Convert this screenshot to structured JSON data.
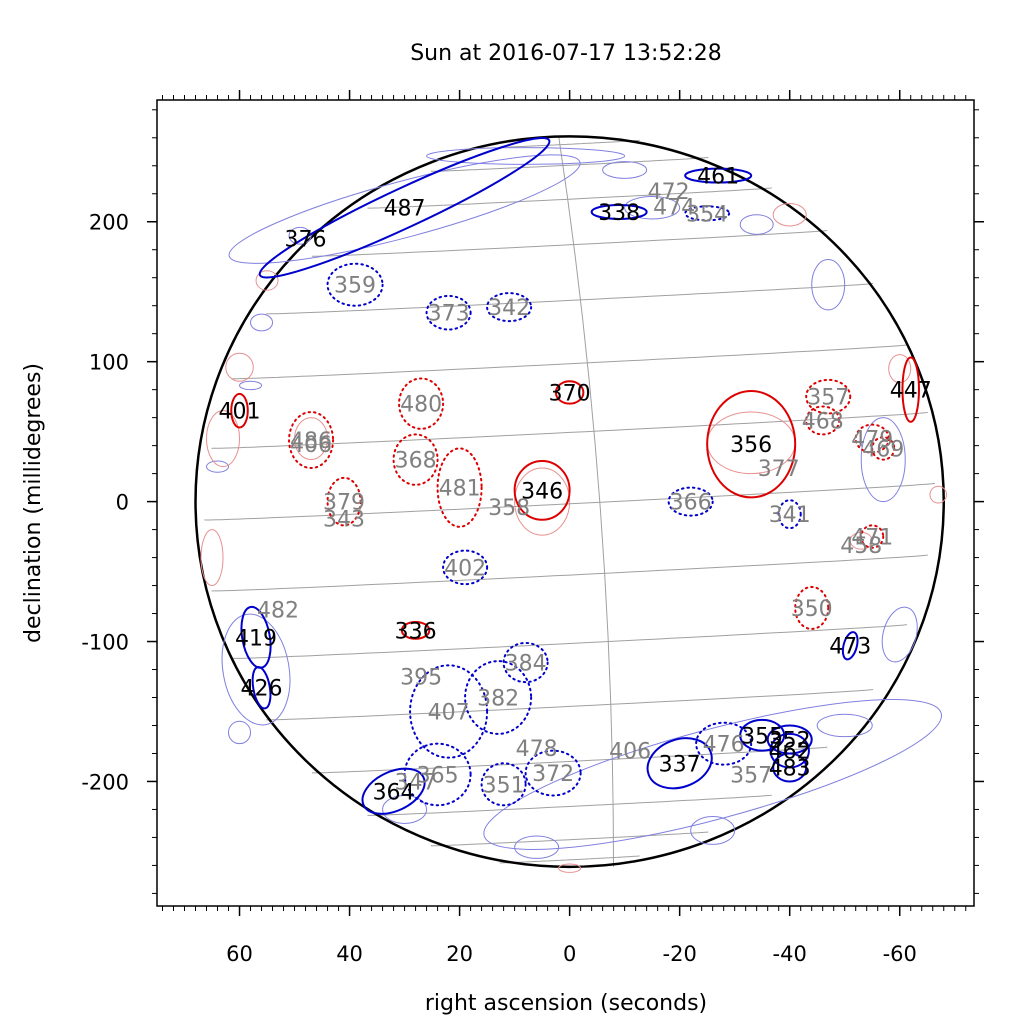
{
  "chart_data": {
    "type": "scatter",
    "title": "Sun at 2016-07-17 13:52:28",
    "xlabel": "right ascension (seconds)",
    "ylabel": "declination (millidegrees)",
    "xlim": [
      75,
      -73.5
    ],
    "ylim": [
      -289,
      287
    ],
    "x_ticks": [
      60,
      40,
      20,
      0,
      -20,
      -40,
      -60
    ],
    "x_tick_labels": [
      "60",
      "40",
      "20",
      "0",
      "-20",
      "-40",
      "-60"
    ],
    "y_ticks": [
      200,
      100,
      0,
      -100,
      -200
    ],
    "y_tick_labels": [
      "200",
      "100",
      "0",
      "-100",
      "-200"
    ],
    "x_minor_step": 2,
    "y_minor_step": 20,
    "sun": {
      "center_ra": 0,
      "center_dec": 0,
      "radius_ra": 68,
      "radius_dec": 261
    },
    "grid": {
      "latitude_lines": 15,
      "central_meridian": true
    },
    "colors": {
      "blue": "#0000cc",
      "red": "#dd0000",
      "faint_blue": "#8080e0",
      "faint_red": "#e89090",
      "label_gray": "#808080",
      "grid": "#a0a0a0"
    },
    "regions": [
      {
        "label": "487",
        "ra": 30,
        "dec": 210,
        "rx": 29,
        "ry": 14,
        "rot": -25,
        "color": "blue",
        "style": "solid",
        "label_tone": "black"
      },
      {
        "label": "376",
        "ra": 48,
        "dec": 188,
        "rx": 0,
        "ry": 0,
        "rot": 0,
        "color": "blue",
        "style": "solid",
        "label_tone": "black"
      },
      {
        "label": "461",
        "ra": -27,
        "dec": 233,
        "rx": 6,
        "ry": 5,
        "rot": 0,
        "color": "blue",
        "style": "solid",
        "label_tone": "black"
      },
      {
        "label": "472",
        "ra": -18,
        "dec": 222,
        "rx": 0,
        "ry": 0,
        "rot": 0,
        "color": "blue",
        "style": "dotted",
        "label_tone": "gray"
      },
      {
        "label": "474",
        "ra": -19,
        "dec": 211,
        "rx": 0,
        "ry": 0,
        "rot": 0,
        "color": "blue",
        "style": "dotted",
        "label_tone": "gray"
      },
      {
        "label": "338",
        "ra": -9,
        "dec": 207,
        "rx": 5,
        "ry": 5,
        "rot": 0,
        "color": "blue",
        "style": "solid",
        "label_tone": "black"
      },
      {
        "label": "354",
        "ra": -25,
        "dec": 206,
        "rx": 4,
        "ry": 5,
        "rot": 0,
        "color": "blue",
        "style": "dotted",
        "label_tone": "gray"
      },
      {
        "label": "359",
        "ra": 39,
        "dec": 155,
        "rx": 5,
        "ry": 15,
        "rot": 0,
        "color": "blue",
        "style": "dotted",
        "label_tone": "gray"
      },
      {
        "label": "373",
        "ra": 22,
        "dec": 135,
        "rx": 4,
        "ry": 12,
        "rot": 0,
        "color": "blue",
        "style": "dotted",
        "label_tone": "gray"
      },
      {
        "label": "342",
        "ra": 11,
        "dec": 139,
        "rx": 4,
        "ry": 10,
        "rot": 0,
        "color": "blue",
        "style": "dotted",
        "label_tone": "gray"
      },
      {
        "label": "370",
        "ra": 0,
        "dec": 78,
        "rx": 2.5,
        "ry": 8,
        "rot": 0,
        "color": "red",
        "style": "solid",
        "label_tone": "black"
      },
      {
        "label": "447",
        "ra": -62,
        "dec": 80,
        "rx": 1.5,
        "ry": 23,
        "rot": 0,
        "color": "red",
        "style": "solid",
        "label_tone": "black"
      },
      {
        "label": "401",
        "ra": 60,
        "dec": 65,
        "rx": 1.5,
        "ry": 12,
        "rot": 0,
        "color": "red",
        "style": "solid",
        "label_tone": "black"
      },
      {
        "label": "480",
        "ra": 27,
        "dec": 70,
        "rx": 4,
        "ry": 18,
        "rot": 0,
        "color": "red",
        "style": "dotted",
        "label_tone": "gray"
      },
      {
        "label": "357",
        "ra": -47,
        "dec": 75,
        "rx": 4,
        "ry": 12,
        "rot": 0,
        "color": "red",
        "style": "dotted",
        "label_tone": "gray"
      },
      {
        "label": "468",
        "ra": -46,
        "dec": 58,
        "rx": 3,
        "ry": 10,
        "rot": 0,
        "color": "red",
        "style": "dotted",
        "label_tone": "gray"
      },
      {
        "label": "356",
        "ra": -33,
        "dec": 41,
        "rx": 8,
        "ry": 38,
        "rot": 0,
        "color": "red",
        "style": "solid",
        "label_tone": "black"
      },
      {
        "label": "479",
        "ra": -55,
        "dec": 45,
        "rx": 3,
        "ry": 10,
        "rot": 0,
        "color": "red",
        "style": "dotted",
        "label_tone": "gray"
      },
      {
        "label": "469",
        "ra": -57,
        "dec": 38,
        "rx": 2,
        "ry": 8,
        "rot": 0,
        "color": "red",
        "style": "dotted",
        "label_tone": "gray"
      },
      {
        "label": "377",
        "ra": -38,
        "dec": 24,
        "rx": 0,
        "ry": 0,
        "rot": 0,
        "color": "red",
        "style": "solid",
        "label_tone": "gray"
      },
      {
        "label": "486",
        "ra": 47,
        "dec": 44,
        "rx": 4,
        "ry": 20,
        "rot": 0,
        "color": "red",
        "style": "dotted",
        "label_tone": "gray"
      },
      {
        "label": "406",
        "ra": 47,
        "dec": 41,
        "rx": 0,
        "ry": 0,
        "rot": 0,
        "color": "red",
        "style": "dotted",
        "label_tone": "gray"
      },
      {
        "label": "368",
        "ra": 28,
        "dec": 30,
        "rx": 4,
        "ry": 18,
        "rot": 0,
        "color": "red",
        "style": "dotted",
        "label_tone": "gray"
      },
      {
        "label": "481",
        "ra": 20,
        "dec": 10,
        "rx": 4,
        "ry": 28,
        "rot": 0,
        "color": "red",
        "style": "dotted",
        "label_tone": "gray"
      },
      {
        "label": "346",
        "ra": 5,
        "dec": 8,
        "rx": 5,
        "ry": 21,
        "rot": 0,
        "color": "red",
        "style": "solid",
        "label_tone": "black"
      },
      {
        "label": "358",
        "ra": 11,
        "dec": -4,
        "rx": 0,
        "ry": 0,
        "rot": 0,
        "color": "red",
        "style": "solid",
        "label_tone": "gray"
      },
      {
        "label": "379",
        "ra": 41,
        "dec": 0,
        "rx": 3,
        "ry": 17,
        "rot": 0,
        "color": "red",
        "style": "dotted",
        "label_tone": "gray"
      },
      {
        "label": "343",
        "ra": 41,
        "dec": -12,
        "rx": 0,
        "ry": 0,
        "rot": 0,
        "color": "red",
        "style": "dotted",
        "label_tone": "gray"
      },
      {
        "label": "366",
        "ra": -22,
        "dec": 0,
        "rx": 4,
        "ry": 10,
        "rot": 0,
        "color": "blue",
        "style": "dotted",
        "label_tone": "gray"
      },
      {
        "label": "341",
        "ra": -40,
        "dec": -9,
        "rx": 2,
        "ry": 10,
        "rot": 0,
        "color": "blue",
        "style": "dotted",
        "label_tone": "gray"
      },
      {
        "label": "471",
        "ra": -55,
        "dec": -25,
        "rx": 2,
        "ry": 8,
        "rot": 0,
        "color": "red",
        "style": "dotted",
        "label_tone": "gray"
      },
      {
        "label": "458",
        "ra": -53,
        "dec": -31,
        "rx": 0,
        "ry": 0,
        "rot": 0,
        "color": "red",
        "style": "dotted",
        "label_tone": "gray"
      },
      {
        "label": "402",
        "ra": 19,
        "dec": -47,
        "rx": 4,
        "ry": 12,
        "rot": 0,
        "color": "blue",
        "style": "dotted",
        "label_tone": "gray"
      },
      {
        "label": "482",
        "ra": 53,
        "dec": -77,
        "rx": 0,
        "ry": 0,
        "rot": 0,
        "color": "red",
        "style": "dotted",
        "label_tone": "gray"
      },
      {
        "label": "350",
        "ra": -44,
        "dec": -76,
        "rx": 3,
        "ry": 15,
        "rot": 0,
        "color": "red",
        "style": "dotted",
        "label_tone": "gray"
      },
      {
        "label": "419",
        "ra": 57,
        "dec": -97,
        "rx": 2.5,
        "ry": 22,
        "rot": -10,
        "color": "blue",
        "style": "solid",
        "label_tone": "black"
      },
      {
        "label": "336",
        "ra": 28,
        "dec": -92,
        "rx": 2.5,
        "ry": 6,
        "rot": 0,
        "color": "red",
        "style": "solid",
        "label_tone": "black"
      },
      {
        "label": "473",
        "ra": -51,
        "dec": -103,
        "rx": 1.2,
        "ry": 10,
        "rot": 15,
        "color": "blue",
        "style": "solid",
        "label_tone": "black"
      },
      {
        "label": "384",
        "ra": 8,
        "dec": -115,
        "rx": 4,
        "ry": 14,
        "rot": 0,
        "color": "blue",
        "style": "dotted",
        "label_tone": "gray"
      },
      {
        "label": "395",
        "ra": 27,
        "dec": -125,
        "rx": 0,
        "ry": 0,
        "rot": 0,
        "color": "red",
        "style": "dotted",
        "label_tone": "gray"
      },
      {
        "label": "426",
        "ra": 56,
        "dec": -133,
        "rx": 1.5,
        "ry": 15,
        "rot": -10,
        "color": "blue",
        "style": "solid",
        "label_tone": "black"
      },
      {
        "label": "382",
        "ra": 13,
        "dec": -140,
        "rx": 6,
        "ry": 26,
        "rot": 0,
        "color": "blue",
        "style": "dotted",
        "label_tone": "gray"
      },
      {
        "label": "407",
        "ra": 22,
        "dec": -150,
        "rx": 7,
        "ry": 33,
        "rot": 0,
        "color": "blue",
        "style": "dotted",
        "label_tone": "gray"
      },
      {
        "label": "355",
        "ra": -35,
        "dec": -167,
        "rx": 4,
        "ry": 11,
        "rot": 0,
        "color": "blue",
        "style": "solid",
        "label_tone": "black"
      },
      {
        "label": "352",
        "ra": -40,
        "dec": -170,
        "rx": 4,
        "ry": 10,
        "rot": 0,
        "color": "blue",
        "style": "solid",
        "label_tone": "black"
      },
      {
        "label": "476",
        "ra": -28,
        "dec": -173,
        "rx": 5,
        "ry": 15,
        "rot": 0,
        "color": "blue",
        "style": "dotted",
        "label_tone": "gray"
      },
      {
        "label": "478",
        "ra": 6,
        "dec": -176,
        "rx": 0,
        "ry": 0,
        "rot": 0,
        "color": "blue",
        "style": "dotted",
        "label_tone": "gray"
      },
      {
        "label": "406",
        "ra": -11,
        "dec": -178,
        "rx": 0,
        "ry": 0,
        "rot": 0,
        "color": "blue",
        "style": "solid",
        "label_tone": "gray"
      },
      {
        "label": "462",
        "ra": -40,
        "dec": -178,
        "rx": 3.5,
        "ry": 12,
        "rot": 0,
        "color": "blue",
        "style": "solid",
        "label_tone": "black"
      },
      {
        "label": "337",
        "ra": -20,
        "dec": -187,
        "rx": 6,
        "ry": 17,
        "rot": -20,
        "color": "blue",
        "style": "solid",
        "label_tone": "black"
      },
      {
        "label": "483",
        "ra": -40,
        "dec": -190,
        "rx": 3,
        "ry": 10,
        "rot": 0,
        "color": "blue",
        "style": "solid",
        "label_tone": "black"
      },
      {
        "label": "372",
        "ra": 3,
        "dec": -194,
        "rx": 5,
        "ry": 16,
        "rot": 0,
        "color": "blue",
        "style": "dotted",
        "label_tone": "gray"
      },
      {
        "label": "357",
        "ra": -33,
        "dec": -195,
        "rx": 0,
        "ry": 0,
        "rot": 0,
        "color": "blue",
        "style": "dotted",
        "label_tone": "gray"
      },
      {
        "label": "365",
        "ra": 24,
        "dec": -195,
        "rx": 6,
        "ry": 22,
        "rot": 0,
        "color": "blue",
        "style": "dotted",
        "label_tone": "gray"
      },
      {
        "label": "347",
        "ra": 28,
        "dec": -200,
        "rx": 0,
        "ry": 0,
        "rot": 0,
        "color": "blue",
        "style": "dotted",
        "label_tone": "gray"
      },
      {
        "label": "351",
        "ra": 12,
        "dec": -202,
        "rx": 4,
        "ry": 15,
        "rot": 0,
        "color": "blue",
        "style": "dotted",
        "label_tone": "gray"
      },
      {
        "label": "364",
        "ra": 32,
        "dec": -207,
        "rx": 6,
        "ry": 14,
        "rot": -25,
        "color": "blue",
        "style": "solid",
        "label_tone": "black"
      }
    ],
    "faint_regions": [
      {
        "ra": -26,
        "dec": -195,
        "rx": 43,
        "ry": 32,
        "rot": -15,
        "color": "faint_blue"
      },
      {
        "ra": 30,
        "dec": 209,
        "rx": 33,
        "ry": 20,
        "rot": -15,
        "color": "faint_blue"
      },
      {
        "ra": 8,
        "dec": 247,
        "rx": 18,
        "ry": 6,
        "rot": 0,
        "color": "faint_blue"
      },
      {
        "ra": -10,
        "dec": 237,
        "rx": 4,
        "ry": 6,
        "rot": 0,
        "color": "faint_blue"
      },
      {
        "ra": -34,
        "dec": 198,
        "rx": 3,
        "ry": 7,
        "rot": 0,
        "color": "faint_blue"
      },
      {
        "ra": -47,
        "dec": 155,
        "rx": 3,
        "ry": 18,
        "rot": 0,
        "color": "faint_blue"
      },
      {
        "ra": -57,
        "dec": 30,
        "rx": 4,
        "ry": 30,
        "rot": 0,
        "color": "faint_blue"
      },
      {
        "ra": -60,
        "dec": -95,
        "rx": 3,
        "ry": 20,
        "rot": 15,
        "color": "faint_blue"
      },
      {
        "ra": -50,
        "dec": -160,
        "rx": 5,
        "ry": 8,
        "rot": 0,
        "color": "faint_blue"
      },
      {
        "ra": -26,
        "dec": -235,
        "rx": 4,
        "ry": 10,
        "rot": 0,
        "color": "faint_blue"
      },
      {
        "ra": 6,
        "dec": -247,
        "rx": 4,
        "ry": 8,
        "rot": 0,
        "color": "faint_blue"
      },
      {
        "ra": 57,
        "dec": -120,
        "rx": 6,
        "ry": 40,
        "rot": -10,
        "color": "faint_blue"
      },
      {
        "ra": 60,
        "dec": -165,
        "rx": 2,
        "ry": 8,
        "rot": 0,
        "color": "faint_blue"
      },
      {
        "ra": 30,
        "dec": -220,
        "rx": 4,
        "ry": 10,
        "rot": 0,
        "color": "faint_blue"
      },
      {
        "ra": 56,
        "dec": 128,
        "rx": 2,
        "ry": 6,
        "rot": 0,
        "color": "faint_blue"
      },
      {
        "ra": 58,
        "dec": 83,
        "rx": 2,
        "ry": 3,
        "rot": 0,
        "color": "faint_blue"
      },
      {
        "ra": 64,
        "dec": 25,
        "rx": 2,
        "ry": 4,
        "rot": 0,
        "color": "faint_blue"
      },
      {
        "ra": -15,
        "dec": 210,
        "rx": 5,
        "ry": 8,
        "rot": 0,
        "color": "faint_blue"
      },
      {
        "ra": 49,
        "dec": 190,
        "rx": 2,
        "ry": 6,
        "rot": 0,
        "color": "faint_blue"
      },
      {
        "ra": 63,
        "dec": 45,
        "rx": 3,
        "ry": 20,
        "rot": 0,
        "color": "faint_red"
      },
      {
        "ra": 60,
        "dec": 96,
        "rx": 2.5,
        "ry": 10,
        "rot": 0,
        "color": "faint_red"
      },
      {
        "ra": 55,
        "dec": 158,
        "rx": 2,
        "ry": 7,
        "rot": 0,
        "color": "faint_red"
      },
      {
        "ra": 65,
        "dec": -40,
        "rx": 2,
        "ry": 20,
        "rot": 0,
        "color": "faint_red"
      },
      {
        "ra": -40,
        "dec": 205,
        "rx": 3,
        "ry": 8,
        "rot": 0,
        "color": "faint_red"
      },
      {
        "ra": -33,
        "dec": 42,
        "rx": 8,
        "ry": 22,
        "rot": 0,
        "color": "faint_red"
      },
      {
        "ra": 5,
        "dec": 0,
        "rx": 5,
        "ry": 24,
        "rot": 0,
        "color": "faint_red"
      },
      {
        "ra": -60,
        "dec": 95,
        "rx": 2,
        "ry": 10,
        "rot": 0,
        "color": "faint_red"
      },
      {
        "ra": -67,
        "dec": 5,
        "rx": 1.5,
        "ry": 6,
        "rot": 0,
        "color": "faint_red"
      },
      {
        "ra": 0,
        "dec": -262,
        "rx": 2,
        "ry": 3,
        "rot": 0,
        "color": "faint_red"
      },
      {
        "ra": 47,
        "dec": 45,
        "rx": 3,
        "ry": 15,
        "rot": 0,
        "color": "faint_red"
      },
      {
        "ra": -53,
        "dec": -28,
        "rx": 2,
        "ry": 6,
        "rot": 0,
        "color": "faint_red"
      }
    ]
  }
}
